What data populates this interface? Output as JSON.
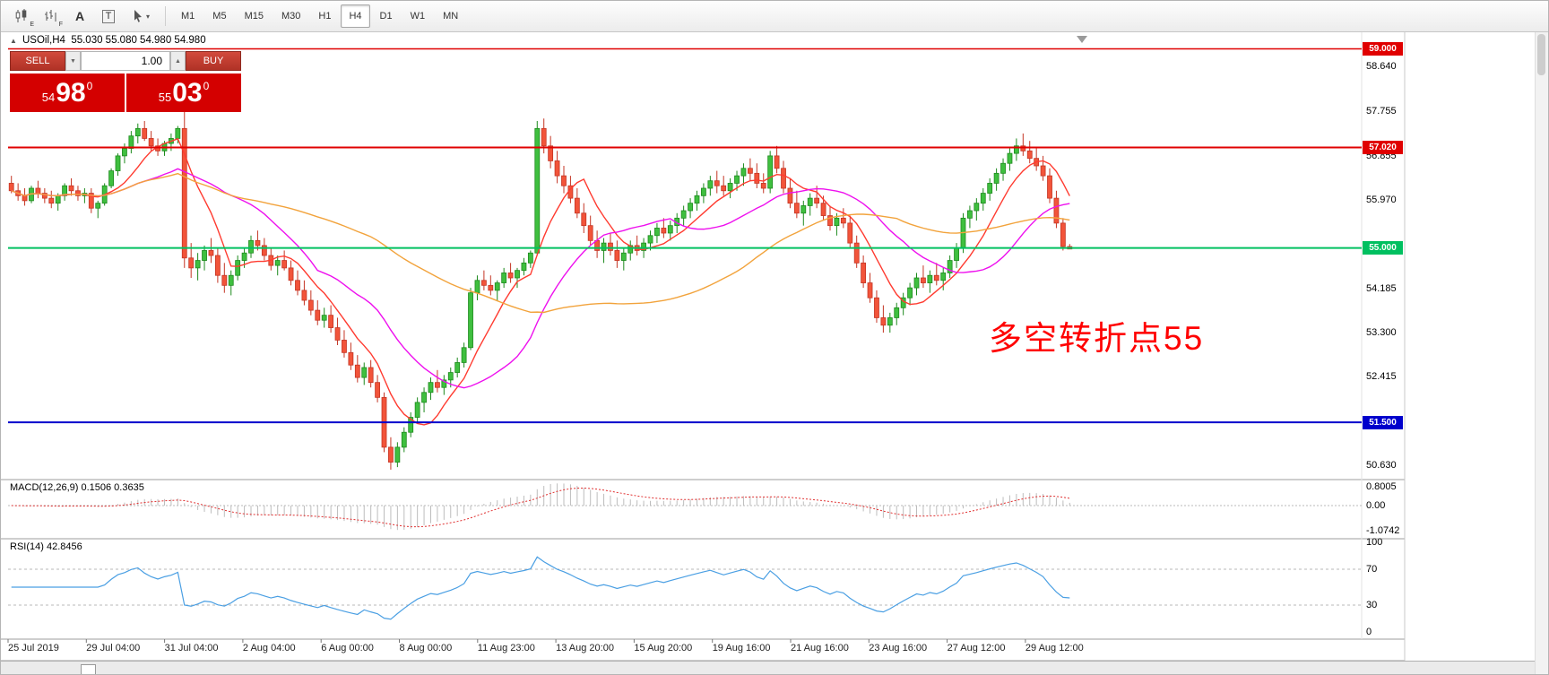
{
  "toolbar": {
    "icons": [
      {
        "name": "candlestick-chart-icon",
        "badge": "E"
      },
      {
        "name": "bar-chart-icon",
        "badge": "F"
      },
      {
        "name": "text-annotation-icon",
        "glyph": "A"
      },
      {
        "name": "textbox-tool-icon",
        "glyph": "T"
      },
      {
        "name": "crosshair-tool-icon",
        "caret": "▾"
      }
    ],
    "timeframes": [
      "M1",
      "M5",
      "M15",
      "M30",
      "H1",
      "H4",
      "D1",
      "W1",
      "MN"
    ],
    "active_timeframe": "H4"
  },
  "chart": {
    "title": "USOil,H4  55.030 55.080 54.980 54.980",
    "collapse_glyph": "▲",
    "trade_panel": {
      "sell_label": "SELL",
      "buy_label": "BUY",
      "volume": "1.00",
      "down_glyph": "▼",
      "up_glyph": "▲",
      "sell_price": {
        "int": "54",
        "frac": "98",
        "pip": "0"
      },
      "buy_price": {
        "int": "55",
        "frac": "03",
        "pip": "0"
      }
    },
    "annotation": {
      "text": "多空转折点55",
      "color": "#ff0000"
    },
    "axis_labels": [
      "58.640",
      "57.755",
      "56.855",
      "55.970",
      "54.185",
      "53.300",
      "52.415",
      "50.630"
    ],
    "level_lines": [
      {
        "price": 59.0,
        "label": "59.000",
        "color": "#e00000",
        "width": 1.5
      },
      {
        "price": 57.02,
        "label": "57.020",
        "color": "#e00000",
        "width": 2
      },
      {
        "price": 55.0,
        "label": "55.000",
        "color": "#00c060",
        "width": 2
      },
      {
        "price": 51.5,
        "label": "51.500",
        "color": "#0000cc",
        "width": 2
      }
    ]
  },
  "chart_data": {
    "type": "candlestick",
    "symbol": "USOil",
    "timeframe": "H4",
    "ylim": [
      50.35,
      59.35
    ],
    "x_labels": [
      "25 Jul 2019",
      "29 Jul 04:00",
      "31 Jul 04:00",
      "2 Aug 04:00",
      "6 Aug 00:00",
      "8 Aug 00:00",
      "11 Aug 23:00",
      "13 Aug 20:00",
      "15 Aug 20:00",
      "19 Aug 16:00",
      "21 Aug 16:00",
      "23 Aug 16:00",
      "27 Aug 12:00",
      "29 Aug 12:00"
    ],
    "colors": {
      "up": "#3fbf3f",
      "up_stroke": "#1d8a1d",
      "down": "#f2543a",
      "down_stroke": "#c43524"
    },
    "overlays": [
      {
        "name": "SMA8",
        "period": 8,
        "color": "#ff3b30"
      },
      {
        "name": "SMA21",
        "period": 21,
        "color": "#ee10ee"
      },
      {
        "name": "SMA55",
        "period": 55,
        "color": "#f2a33c"
      }
    ],
    "candles": [
      [
        56.3,
        56.45,
        56.1,
        56.15
      ],
      [
        56.15,
        56.3,
        55.95,
        56.05
      ],
      [
        56.05,
        56.2,
        55.85,
        55.95
      ],
      [
        55.95,
        56.25,
        55.9,
        56.2
      ],
      [
        56.2,
        56.35,
        56.0,
        56.1
      ],
      [
        56.1,
        56.2,
        55.9,
        56.0
      ],
      [
        56.0,
        56.15,
        55.8,
        55.9
      ],
      [
        55.9,
        56.1,
        55.75,
        56.05
      ],
      [
        56.05,
        56.3,
        55.95,
        56.25
      ],
      [
        56.25,
        56.4,
        56.05,
        56.15
      ],
      [
        56.15,
        56.25,
        55.95,
        56.05
      ],
      [
        56.05,
        56.2,
        55.9,
        56.1
      ],
      [
        56.1,
        56.2,
        55.7,
        55.8
      ],
      [
        55.8,
        55.95,
        55.6,
        55.9
      ],
      [
        55.9,
        56.3,
        55.85,
        56.25
      ],
      [
        56.25,
        56.6,
        56.2,
        56.55
      ],
      [
        56.55,
        56.9,
        56.45,
        56.85
      ],
      [
        56.85,
        57.1,
        56.7,
        57.0
      ],
      [
        57.0,
        57.35,
        56.9,
        57.25
      ],
      [
        57.25,
        57.5,
        57.1,
        57.4
      ],
      [
        57.4,
        57.55,
        57.15,
        57.2
      ],
      [
        57.2,
        57.35,
        56.95,
        57.05
      ],
      [
        57.05,
        57.2,
        56.85,
        56.95
      ],
      [
        56.95,
        57.15,
        56.85,
        57.1
      ],
      [
        57.1,
        57.3,
        56.95,
        57.2
      ],
      [
        57.2,
        57.45,
        57.1,
        57.4
      ],
      [
        57.4,
        57.95,
        54.6,
        54.8
      ],
      [
        54.8,
        55.1,
        54.4,
        54.6
      ],
      [
        54.6,
        54.9,
        54.35,
        54.75
      ],
      [
        54.75,
        55.05,
        54.55,
        54.95
      ],
      [
        54.95,
        55.2,
        54.7,
        54.85
      ],
      [
        54.85,
        55.0,
        54.3,
        54.45
      ],
      [
        54.45,
        54.7,
        54.1,
        54.25
      ],
      [
        54.25,
        54.55,
        54.05,
        54.45
      ],
      [
        54.45,
        54.85,
        54.35,
        54.75
      ],
      [
        54.75,
        55.0,
        54.6,
        54.9
      ],
      [
        54.9,
        55.25,
        54.8,
        55.15
      ],
      [
        55.15,
        55.35,
        54.95,
        55.05
      ],
      [
        55.05,
        55.2,
        54.75,
        54.85
      ],
      [
        54.85,
        55.0,
        54.55,
        54.65
      ],
      [
        54.65,
        54.85,
        54.45,
        54.75
      ],
      [
        54.75,
        54.95,
        54.55,
        54.6
      ],
      [
        54.6,
        54.75,
        54.25,
        54.35
      ],
      [
        54.35,
        54.55,
        54.05,
        54.15
      ],
      [
        54.15,
        54.35,
        53.85,
        53.95
      ],
      [
        53.95,
        54.15,
        53.65,
        53.75
      ],
      [
        53.75,
        53.95,
        53.45,
        53.55
      ],
      [
        53.55,
        53.8,
        53.4,
        53.65
      ],
      [
        53.65,
        53.85,
        53.3,
        53.4
      ],
      [
        53.4,
        53.6,
        53.05,
        53.15
      ],
      [
        53.15,
        53.35,
        52.8,
        52.9
      ],
      [
        52.9,
        53.1,
        52.55,
        52.65
      ],
      [
        52.65,
        52.85,
        52.3,
        52.4
      ],
      [
        52.4,
        52.7,
        52.25,
        52.6
      ],
      [
        52.6,
        52.75,
        52.2,
        52.3
      ],
      [
        52.3,
        52.45,
        51.9,
        52.0
      ],
      [
        52.0,
        52.1,
        50.9,
        51.0
      ],
      [
        51.0,
        51.2,
        50.55,
        50.7
      ],
      [
        50.7,
        51.1,
        50.6,
        51.0
      ],
      [
        51.0,
        51.4,
        50.9,
        51.3
      ],
      [
        51.3,
        51.7,
        51.2,
        51.6
      ],
      [
        51.6,
        52.0,
        51.5,
        51.9
      ],
      [
        51.9,
        52.2,
        51.7,
        52.1
      ],
      [
        52.1,
        52.4,
        51.95,
        52.3
      ],
      [
        52.3,
        52.55,
        52.1,
        52.2
      ],
      [
        52.2,
        52.45,
        52.05,
        52.35
      ],
      [
        52.35,
        52.6,
        52.2,
        52.5
      ],
      [
        52.5,
        52.8,
        52.4,
        52.7
      ],
      [
        52.7,
        53.1,
        52.6,
        53.0
      ],
      [
        53.0,
        54.2,
        52.95,
        54.1
      ],
      [
        54.1,
        54.45,
        53.95,
        54.35
      ],
      [
        54.35,
        54.55,
        54.15,
        54.25
      ],
      [
        54.25,
        54.45,
        54.05,
        54.15
      ],
      [
        54.15,
        54.35,
        53.95,
        54.3
      ],
      [
        54.3,
        54.6,
        54.2,
        54.5
      ],
      [
        54.5,
        54.7,
        54.3,
        54.4
      ],
      [
        54.4,
        54.6,
        54.2,
        54.55
      ],
      [
        54.55,
        54.8,
        54.45,
        54.7
      ],
      [
        54.7,
        54.95,
        54.6,
        54.9
      ],
      [
        54.9,
        57.55,
        54.85,
        57.4
      ],
      [
        57.4,
        57.6,
        56.9,
        57.05
      ],
      [
        57.05,
        57.25,
        56.6,
        56.75
      ],
      [
        56.75,
        56.95,
        56.3,
        56.45
      ],
      [
        56.45,
        56.65,
        56.1,
        56.25
      ],
      [
        56.25,
        56.45,
        55.9,
        56.0
      ],
      [
        56.0,
        56.2,
        55.6,
        55.7
      ],
      [
        55.7,
        55.9,
        55.3,
        55.45
      ],
      [
        55.45,
        55.65,
        55.05,
        55.15
      ],
      [
        55.15,
        55.35,
        54.8,
        54.95
      ],
      [
        54.95,
        55.2,
        54.7,
        55.1
      ],
      [
        55.1,
        55.3,
        54.85,
        54.95
      ],
      [
        54.95,
        55.15,
        54.6,
        54.75
      ],
      [
        54.75,
        55.0,
        54.55,
        54.9
      ],
      [
        54.9,
        55.15,
        54.75,
        55.05
      ],
      [
        55.05,
        55.25,
        54.85,
        54.95
      ],
      [
        54.95,
        55.2,
        54.8,
        55.1
      ],
      [
        55.1,
        55.35,
        54.95,
        55.25
      ],
      [
        55.25,
        55.5,
        55.1,
        55.4
      ],
      [
        55.4,
        55.6,
        55.2,
        55.3
      ],
      [
        55.3,
        55.55,
        55.15,
        55.45
      ],
      [
        55.45,
        55.7,
        55.3,
        55.6
      ],
      [
        55.6,
        55.85,
        55.45,
        55.75
      ],
      [
        55.75,
        56.0,
        55.6,
        55.9
      ],
      [
        55.9,
        56.15,
        55.75,
        56.05
      ],
      [
        56.05,
        56.3,
        55.9,
        56.2
      ],
      [
        56.2,
        56.45,
        56.05,
        56.35
      ],
      [
        56.35,
        56.55,
        56.1,
        56.25
      ],
      [
        56.25,
        56.45,
        56.05,
        56.15
      ],
      [
        56.15,
        56.4,
        56.0,
        56.3
      ],
      [
        56.3,
        56.55,
        56.15,
        56.45
      ],
      [
        56.45,
        56.7,
        56.25,
        56.6
      ],
      [
        56.6,
        56.8,
        56.35,
        56.5
      ],
      [
        56.5,
        56.7,
        56.2,
        56.3
      ],
      [
        56.3,
        56.5,
        56.1,
        56.2
      ],
      [
        56.2,
        56.95,
        56.1,
        56.85
      ],
      [
        56.85,
        57.05,
        56.5,
        56.6
      ],
      [
        56.6,
        56.75,
        56.1,
        56.2
      ],
      [
        56.2,
        56.4,
        55.8,
        55.9
      ],
      [
        55.9,
        56.15,
        55.6,
        55.7
      ],
      [
        55.7,
        55.95,
        55.45,
        55.85
      ],
      [
        55.85,
        56.1,
        55.65,
        56.0
      ],
      [
        56.0,
        56.25,
        55.8,
        55.9
      ],
      [
        55.9,
        56.05,
        55.55,
        55.65
      ],
      [
        55.65,
        55.85,
        55.35,
        55.45
      ],
      [
        55.45,
        55.7,
        55.25,
        55.6
      ],
      [
        55.6,
        55.8,
        55.4,
        55.5
      ],
      [
        55.5,
        55.65,
        55.0,
        55.1
      ],
      [
        55.1,
        55.25,
        54.6,
        54.7
      ],
      [
        54.7,
        54.85,
        54.2,
        54.3
      ],
      [
        54.3,
        54.5,
        53.9,
        54.0
      ],
      [
        54.0,
        54.15,
        53.5,
        53.6
      ],
      [
        53.6,
        53.85,
        53.3,
        53.45
      ],
      [
        53.45,
        53.7,
        53.3,
        53.6
      ],
      [
        53.6,
        53.9,
        53.45,
        53.8
      ],
      [
        53.8,
        54.1,
        53.65,
        54.0
      ],
      [
        54.0,
        54.3,
        53.85,
        54.2
      ],
      [
        54.2,
        54.5,
        54.05,
        54.4
      ],
      [
        54.4,
        54.65,
        54.2,
        54.3
      ],
      [
        54.3,
        54.55,
        54.1,
        54.45
      ],
      [
        54.45,
        54.7,
        54.25,
        54.35
      ],
      [
        54.35,
        54.6,
        54.15,
        54.5
      ],
      [
        54.5,
        54.85,
        54.4,
        54.75
      ],
      [
        54.75,
        55.1,
        54.6,
        55.0
      ],
      [
        55.0,
        55.7,
        54.9,
        55.6
      ],
      [
        55.6,
        55.85,
        55.4,
        55.75
      ],
      [
        55.75,
        56.0,
        55.55,
        55.9
      ],
      [
        55.9,
        56.2,
        55.75,
        56.1
      ],
      [
        56.1,
        56.4,
        55.95,
        56.3
      ],
      [
        56.3,
        56.6,
        56.15,
        56.5
      ],
      [
        56.5,
        56.8,
        56.35,
        56.7
      ],
      [
        56.7,
        57.0,
        56.55,
        56.9
      ],
      [
        56.9,
        57.2,
        56.75,
        57.05
      ],
      [
        57.05,
        57.3,
        56.85,
        56.95
      ],
      [
        56.95,
        57.15,
        56.7,
        56.8
      ],
      [
        56.8,
        57.0,
        56.55,
        56.65
      ],
      [
        56.65,
        56.85,
        56.35,
        56.45
      ],
      [
        56.45,
        56.6,
        55.9,
        56.0
      ],
      [
        56.0,
        56.15,
        55.4,
        55.5
      ],
      [
        55.5,
        55.6,
        54.95,
        55.03
      ],
      [
        55.03,
        55.08,
        54.98,
        54.98
      ]
    ]
  },
  "macd": {
    "label": "MACD(12,26,9) 0.1506 0.3635",
    "fast": 12,
    "slow": 26,
    "signal_period": 9,
    "current_values": [
      "0.1506",
      "0.3635"
    ],
    "axis": [
      "0.8005",
      "0.00",
      "-1.0742"
    ],
    "ylim": [
      -1.25,
      0.95
    ],
    "colors": {
      "histogram": "#bdbdbd",
      "signal": "#e03030"
    }
  },
  "rsi": {
    "label": "RSI(14) 42.8456",
    "period": 14,
    "current_value": "42.8456",
    "axis": [
      "100",
      "70",
      "30",
      "0"
    ],
    "levels": [
      70,
      30
    ],
    "color": "#4a9fe3"
  }
}
